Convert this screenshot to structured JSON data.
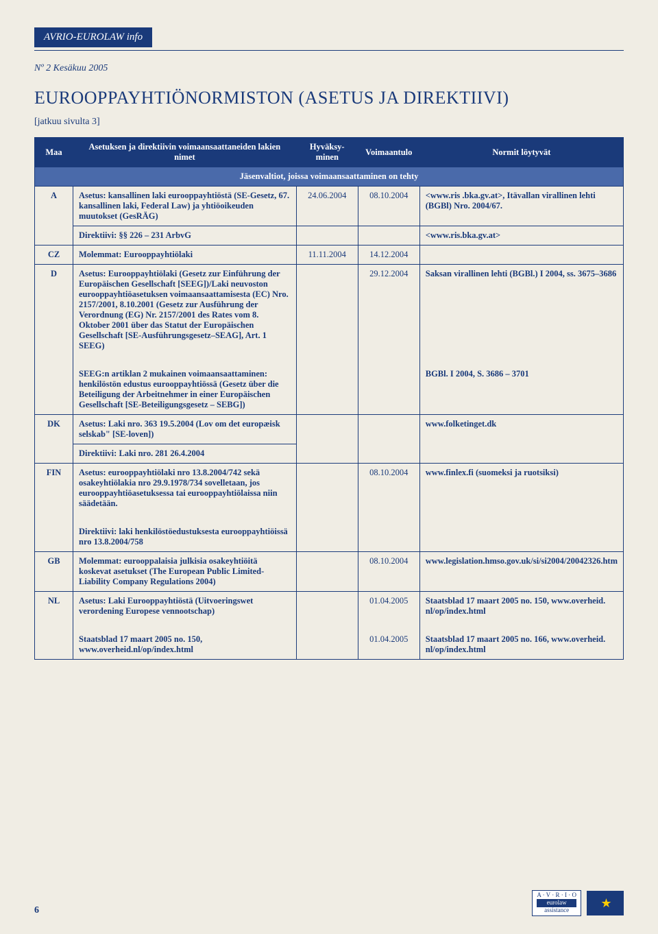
{
  "header": {
    "brand": "AVRIO-EUROLAW  info",
    "issue": "Nº 2   Kesäkuu 2005"
  },
  "title": "EUROOPPAYHTIÖNORMISTON (ASETUS JA DIREKTIIVI)",
  "continued": "[jatkuu sivulta 3]",
  "thead": {
    "maa": "Maa",
    "nimet": "Asetuksen ja direktiivin voimaansaattaneiden lakien nimet",
    "hyvaksy": "Hyväksy-minen",
    "voimaantulo": "Voimaantulo",
    "normit": "Normit löytyvät",
    "subhead": "Jäsenvaltiot, joissa voimaansaattaminen on tehty"
  },
  "rows": {
    "A1": {
      "maa": "A",
      "text": "Asetus: kansallinen laki eurooppayhtiöstä (SE-Gesetz, 67. kansallinen laki, Federal Law) ja yhtiöoikeuden muutokset (GesRÄG)",
      "d1": "24.06.2004",
      "d2": "08.10.2004",
      "norm": "<www.ris .bka.gv.at>, Itävallan virallinen lehti (BGBl) Nro. 2004/67."
    },
    "A2": {
      "text": "Direktiivi: §§ 226 – 231 ArbvG",
      "norm": "<www.ris.bka.gv.at>"
    },
    "CZ": {
      "maa": "CZ",
      "text": "Molemmat: Eurooppayhtiölaki",
      "d1": "11.11.2004",
      "d2": "14.12.2004"
    },
    "D1": {
      "maa": "D",
      "text": "Asetus: Eurooppayhtiölaki (Gesetz zur Einführung der Europäischen Gesellschaft [SEEG])/Laki neuvoston eurooppayhtiöasetuksen voimaansaattamisesta (EC) Nro. 2157/2001, 8.10.2001 (Gesetz zur Ausführung der Verordnung (EG) Nr. 2157/2001 des Rates vom 8. Oktober 2001 über das Statut der Europäischen Gesellschaft [SE-Ausführungsgesetz–SEAG], Art. 1 SEEG)",
      "d2": "29.12.2004",
      "norm": "Saksan virallinen lehti (BGBl.) I 2004, ss. 3675–3686"
    },
    "D2": {
      "text": "SEEG:n artiklan 2 mukainen voimaansaattaminen: henkilöstön edustus eurooppayhtiössä (Gesetz über die Beteiligung der Arbeitnehmer in einer Europäischen Gesellschaft [SE-Beteiligungsgesetz – SEBG])",
      "norm": "BGBl. I 2004, S. 3686 – 3701"
    },
    "DK1": {
      "maa": "DK",
      "text": "Asetus: Laki nro. 363 19.5.2004 (Lov om det europæisk selskab\" [SE-loven])",
      "norm": "www.folketinget.dk"
    },
    "DK2": {
      "text": "Direktiivi: Laki nro. 281 26.4.2004"
    },
    "FIN1": {
      "maa": "FIN",
      "text": "Asetus: eurooppayhtiölaki nro 13.8.2004/742 sekä osakeyhtiölakia nro 29.9.1978/734 sovelletaan, jos eurooppayhtiöasetuksessa tai eurooppayhtiölaissa niin säädetään.",
      "d2": "08.10.2004",
      "norm": "www.finlex.fi (suomeksi ja ruotsiksi)"
    },
    "FIN2": {
      "text": "Direktiivi: laki henkilöstöedustuksesta eurooppayhtiöissä nro 13.8.2004/758"
    },
    "GB": {
      "maa": "GB",
      "text": "Molemmat: eurooppalaisia julkisia osakeyhtiöitä koskevat asetukset (The European Public Limited-Liability Company Regulations 2004)",
      "d2": "08.10.2004",
      "norm": "www.legislation.hmso.gov.uk/si/si2004/20042326.htm"
    },
    "NL1": {
      "maa": "NL",
      "text": "Asetus: Laki Eurooppayhtiöstä (Uitvoeringswet verordening Europese vennootschap)",
      "d2": "01.04.2005",
      "norm": "Staatsblad 17 maart 2005 no. 150, www.overheid. nl/op/index.html"
    },
    "NL2": {
      "text": "Staatsblad 17 maart 2005 no. 150, www.overheid.nl/op/index.html",
      "d2": "01.04.2005",
      "norm": "Staatsblad 17 maart 2005 no. 166, www.overheid. nl/op/index.html"
    }
  },
  "footer": {
    "page": "6",
    "logo_lines": [
      "A · V · R · I · O",
      "eurolaw",
      "assistance"
    ]
  }
}
